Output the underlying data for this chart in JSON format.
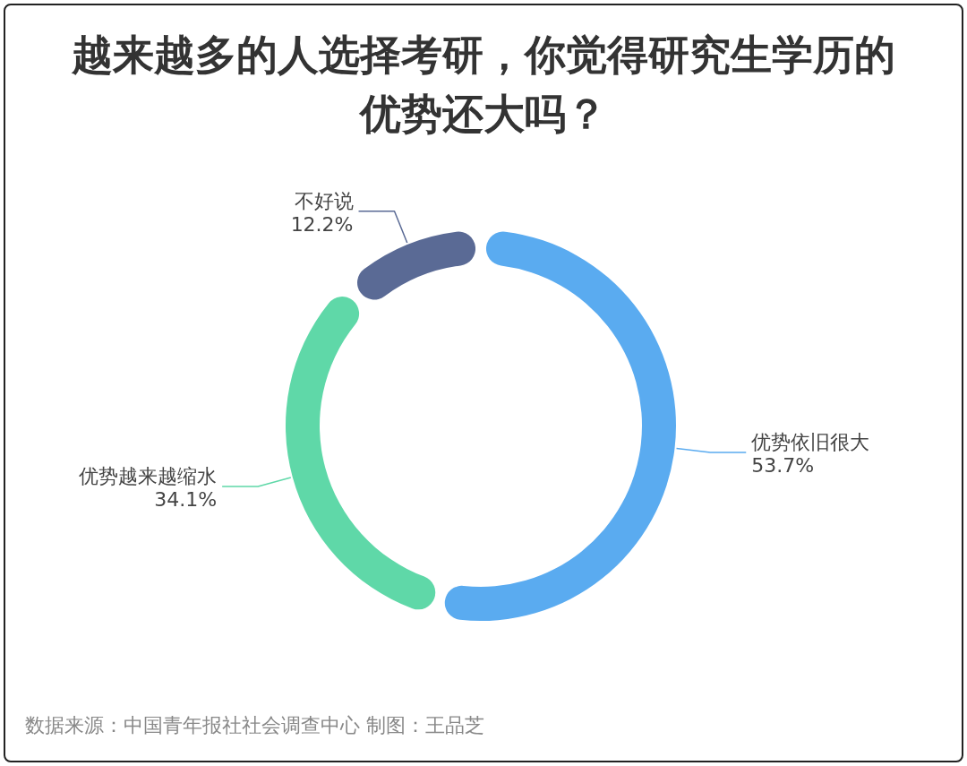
{
  "chart_data": {
    "type": "donut",
    "title": "越来越多的人选择考研，你觉得研究生学历的优势还大吗？",
    "categories": [
      "优势依旧很大",
      "优势越来越缩水",
      "不好说"
    ],
    "values": [
      53.7,
      34.1,
      12.2
    ],
    "colors": [
      "#5aabf0",
      "#5fd8a8",
      "#5a6a95"
    ],
    "value_labels": [
      "53.7%",
      "34.1%",
      "12.2%"
    ],
    "annotations": [
      "数据来源：中国青年报社社会调查中心 制图：王品芝"
    ]
  }
}
